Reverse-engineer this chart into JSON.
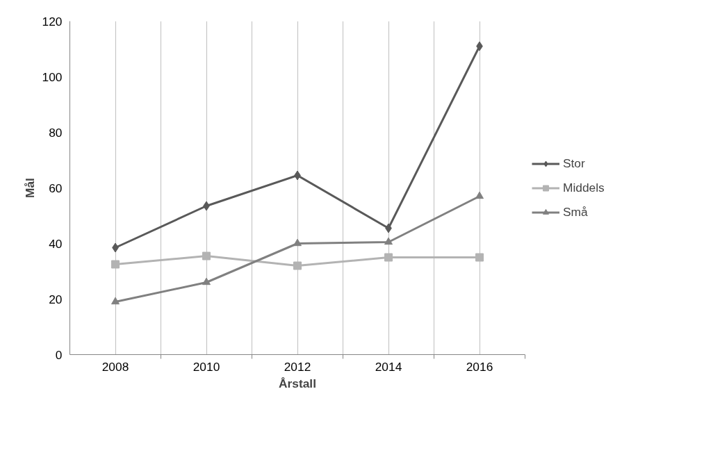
{
  "chart_data": {
    "type": "line",
    "xlabel": "Årstall",
    "ylabel": "Mål",
    "categories": [
      "2008",
      "2010",
      "2012",
      "2014",
      "2016"
    ],
    "series": [
      {
        "name": "Stor",
        "color": "#595959",
        "marker": "diamond",
        "values": [
          38.5,
          53.5,
          64.5,
          45.5,
          111
        ]
      },
      {
        "name": "Middels",
        "color": "#b3b3b3",
        "marker": "square",
        "values": [
          32.5,
          35.5,
          32,
          35,
          35
        ]
      },
      {
        "name": "Små",
        "color": "#808080",
        "marker": "triangle",
        "values": [
          19,
          26,
          40,
          40.5,
          57
        ]
      }
    ],
    "ylim": [
      0,
      120
    ],
    "yticks": [
      0,
      20,
      40,
      60,
      80,
      100,
      120
    ],
    "grid": "x",
    "legend": "right"
  }
}
